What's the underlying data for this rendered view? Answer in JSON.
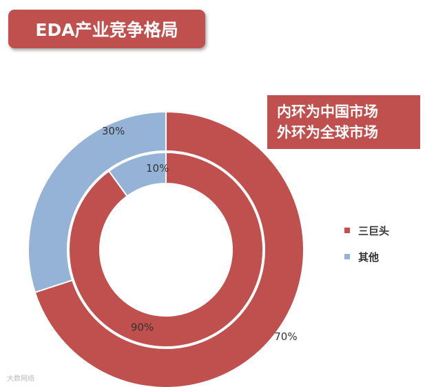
{
  "title": "EDA产业竞争格局",
  "note": {
    "line1": "内环为中国市场",
    "line2": "外环为全球市场"
  },
  "watermark": "大数网络",
  "colors": {
    "accent": "#c0504d",
    "others": "#95b3d7"
  },
  "chart_data": {
    "type": "donut",
    "categories": [
      "三巨头",
      "其他"
    ],
    "colors": [
      "#c0504d",
      "#95b3d7"
    ],
    "rings": [
      {
        "name": "外环为全球市场",
        "values": [
          70,
          30
        ],
        "labels": [
          "70%",
          "30%"
        ]
      },
      {
        "name": "内环为中国市场",
        "values": [
          90,
          10
        ],
        "labels": [
          "90%",
          "10%"
        ]
      }
    ],
    "legend_position": "right"
  }
}
